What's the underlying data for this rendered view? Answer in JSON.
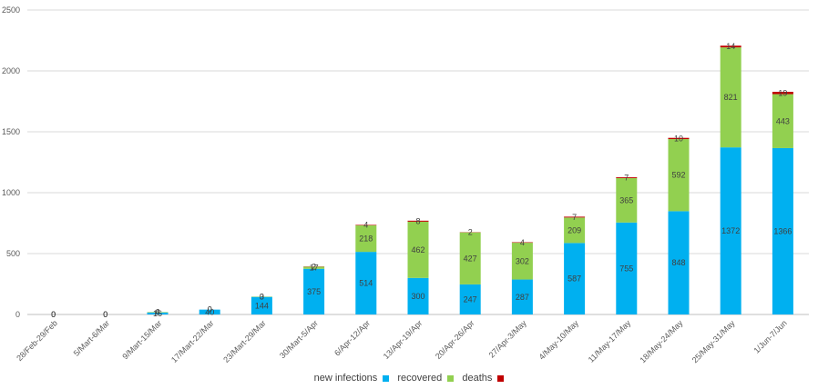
{
  "chart_data": {
    "type": "bar",
    "stacked": true,
    "categories": [
      "28/Feb-29/Feb",
      "5/Mart-6/Mar",
      "9/Mart-15/Mar",
      "17/Mart-22/Mar",
      "23/Mart-29/Mar",
      "30/Mart-5/Apr",
      "6/Apr-12/Apr",
      "13/Apr-19/Apr",
      "20/Apr-26/Apr",
      "27/Apr-3/May",
      "4/May-10/May",
      "11/May-17/May",
      "18/May-24/May",
      "25/May-31/May",
      "1/Jun-7/Jun"
    ],
    "series": [
      {
        "name": "new infections",
        "color": "#00b0f0",
        "values": [
          0,
          0,
          16,
          40,
          144,
          375,
          514,
          300,
          247,
          287,
          587,
          755,
          848,
          1372,
          1366
        ]
      },
      {
        "name": "recovered",
        "color": "#92d050",
        "values": [
          0,
          0,
          4,
          0,
          3,
          17,
          218,
          462,
          427,
          302,
          209,
          365,
          592,
          821,
          443
        ]
      },
      {
        "name": "deaths",
        "color": "#c00000",
        "values": [
          0,
          0,
          0,
          0,
          0,
          2,
          4,
          8,
          2,
          4,
          7,
          7,
          10,
          14,
          19
        ]
      }
    ],
    "ylim": [
      0,
      2500
    ],
    "yticks": [
      0,
      500,
      1000,
      1500,
      2000,
      2500
    ],
    "grid": true,
    "legend": "bottom"
  }
}
